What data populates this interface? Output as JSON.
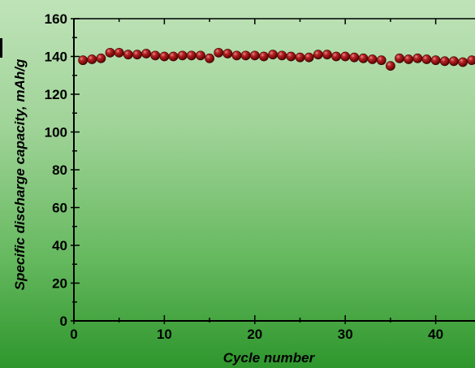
{
  "chart_data": {
    "type": "scatter",
    "xlabel": "Cycle number",
    "ylabel": "Specific discharge capacity, mAh/g",
    "xlim": [
      0,
      44
    ],
    "ylim": [
      0,
      160
    ],
    "x_ticks": [
      0,
      10,
      20,
      30,
      40
    ],
    "y_ticks": [
      0,
      20,
      40,
      60,
      80,
      100,
      120,
      140,
      160
    ],
    "grid": false,
    "legend": "none",
    "colors": {
      "background_top": "#bfe3b8",
      "background_bottom": "#2e962c",
      "marker": "#8a0f0f"
    },
    "series": [
      {
        "x": [
          1,
          2,
          3,
          4,
          5,
          6,
          7,
          8,
          9,
          10,
          11,
          12,
          13,
          14,
          15,
          16,
          17,
          18,
          19,
          20,
          21,
          22,
          23,
          24,
          25,
          26,
          27,
          28,
          29,
          30,
          31,
          32,
          33,
          34,
          35,
          36,
          37,
          38,
          39,
          40,
          41,
          42,
          43,
          44
        ],
        "values": [
          138,
          138.5,
          139,
          142,
          142,
          141,
          141,
          141.5,
          140.5,
          140,
          140,
          140.5,
          140.5,
          140.5,
          139,
          142,
          141.5,
          140.5,
          140.5,
          140.5,
          140,
          141,
          140.5,
          140,
          139.5,
          139.5,
          141,
          141,
          140,
          140,
          139.5,
          139,
          138.5,
          138,
          135,
          139,
          138.5,
          139,
          138.5,
          138,
          137.5,
          137.5,
          137,
          138
        ]
      }
    ]
  }
}
